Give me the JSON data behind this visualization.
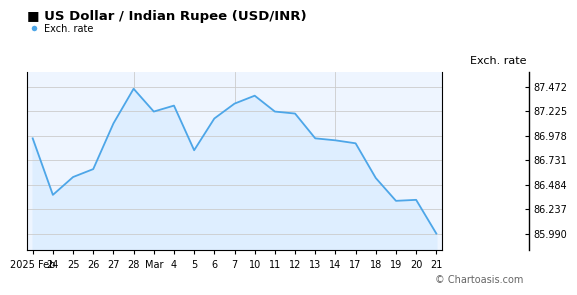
{
  "title": "US Dollar / Indian Rupee (USD/INR)",
  "legend_label": "Exch. rate",
  "ylabel_right": "Exch. rate",
  "watermark": "© Chartoasis.com",
  "x_labels": [
    "2025 Feb",
    "24",
    "25",
    "26",
    "27",
    "28",
    "Mar",
    "4",
    "5",
    "6",
    "7",
    "10",
    "11",
    "12",
    "13",
    "14",
    "17",
    "18",
    "19",
    "20",
    "21"
  ],
  "x_values": [
    0,
    1,
    2,
    3,
    4,
    5,
    6,
    7,
    8,
    9,
    10,
    11,
    12,
    13,
    14,
    15,
    16,
    17,
    18,
    19,
    20
  ],
  "y_values": [
    86.95,
    86.38,
    86.56,
    86.64,
    87.1,
    87.45,
    87.22,
    87.28,
    86.83,
    87.15,
    87.3,
    87.38,
    87.22,
    87.2,
    86.95,
    86.93,
    86.9,
    86.55,
    86.32,
    86.33,
    85.99
  ],
  "yticks": [
    85.99,
    86.237,
    86.484,
    86.731,
    86.978,
    87.225,
    87.472
  ],
  "ylim_min": 85.82,
  "ylim_max": 87.62,
  "line_color": "#4da6e8",
  "fill_color": "#deeeff",
  "title_color": "#000000",
  "legend_dot_color": "#4da6e8",
  "bg_color": "#ffffff",
  "plot_bg_color": "#eef5ff",
  "grid_color": "#cccccc",
  "border_color": "#000000",
  "title_fontsize": 9.5,
  "tick_fontsize": 7,
  "ylabel_fontsize": 8,
  "watermark_fontsize": 7
}
